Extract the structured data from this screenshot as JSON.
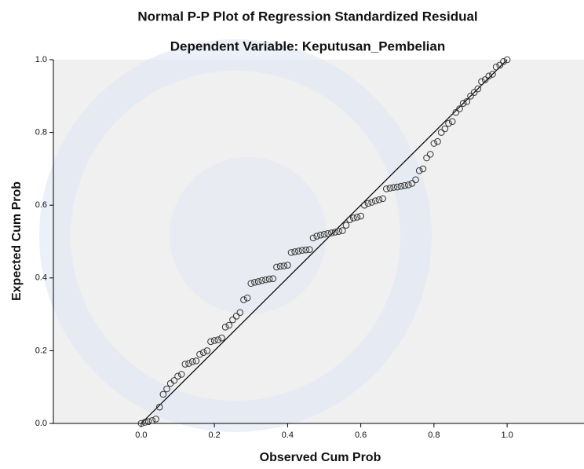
{
  "chart_data": {
    "type": "scatter",
    "title": "Normal P-P Plot of Regression Standardized Residual",
    "subtitle": "Dependent Variable: Keputusan_Pembelian",
    "x_label": "Observed Cum Prob",
    "y_label": "Expected Cum Prob",
    "x": [
      0.0,
      0.01,
      0.02,
      0.03,
      0.04,
      0.05,
      0.06,
      0.07,
      0.08,
      0.09,
      0.1,
      0.11,
      0.12,
      0.13,
      0.14,
      0.15,
      0.16,
      0.17,
      0.18,
      0.19,
      0.2,
      0.21,
      0.22,
      0.23,
      0.24,
      0.25,
      0.26,
      0.27,
      0.28,
      0.29,
      0.3,
      0.31,
      0.32,
      0.33,
      0.34,
      0.35,
      0.36,
      0.37,
      0.38,
      0.39,
      0.4,
      0.41,
      0.42,
      0.43,
      0.44,
      0.45,
      0.46,
      0.47,
      0.48,
      0.49,
      0.5,
      0.51,
      0.52,
      0.53,
      0.54,
      0.55,
      0.56,
      0.57,
      0.58,
      0.59,
      0.6,
      0.61,
      0.62,
      0.63,
      0.64,
      0.65,
      0.66,
      0.67,
      0.68,
      0.69,
      0.7,
      0.71,
      0.72,
      0.73,
      0.74,
      0.75,
      0.76,
      0.77,
      0.78,
      0.79,
      0.8,
      0.81,
      0.82,
      0.83,
      0.84,
      0.85,
      0.86,
      0.87,
      0.88,
      0.89,
      0.9,
      0.91,
      0.92,
      0.93,
      0.94,
      0.95,
      0.96,
      0.97,
      0.98,
      0.99,
      1.0
    ],
    "values": [
      0.0,
      0.003,
      0.005,
      0.008,
      0.012,
      0.045,
      0.08,
      0.095,
      0.11,
      0.118,
      0.13,
      0.135,
      0.163,
      0.165,
      0.17,
      0.172,
      0.19,
      0.195,
      0.2,
      0.225,
      0.228,
      0.23,
      0.235,
      0.265,
      0.27,
      0.285,
      0.295,
      0.305,
      0.34,
      0.345,
      0.385,
      0.388,
      0.39,
      0.393,
      0.395,
      0.397,
      0.398,
      0.43,
      0.432,
      0.433,
      0.435,
      0.47,
      0.472,
      0.474,
      0.476,
      0.477,
      0.478,
      0.51,
      0.515,
      0.518,
      0.52,
      0.522,
      0.524,
      0.526,
      0.528,
      0.53,
      0.545,
      0.56,
      0.565,
      0.567,
      0.57,
      0.6,
      0.605,
      0.608,
      0.612,
      0.615,
      0.618,
      0.645,
      0.647,
      0.649,
      0.65,
      0.652,
      0.654,
      0.656,
      0.66,
      0.67,
      0.695,
      0.7,
      0.73,
      0.74,
      0.77,
      0.775,
      0.8,
      0.81,
      0.825,
      0.83,
      0.855,
      0.865,
      0.88,
      0.885,
      0.9,
      0.91,
      0.92,
      0.94,
      0.945,
      0.955,
      0.96,
      0.98,
      0.985,
      0.995,
      1.0
    ],
    "xlim": [
      -0.24,
      1.21
    ],
    "ylim": [
      0,
      1
    ],
    "xticks": [
      {
        "value": 0,
        "label": "0.0"
      },
      {
        "value": 0.2,
        "label": "0.2"
      },
      {
        "value": 0.4,
        "label": "0.4"
      },
      {
        "value": 0.6,
        "label": "0.6"
      },
      {
        "value": 0.8,
        "label": "0.8"
      },
      {
        "value": 1,
        "label": "1.0"
      }
    ],
    "yticks": [
      {
        "value": 0,
        "label": "0.0"
      },
      {
        "value": 0.2,
        "label": "0.2"
      },
      {
        "value": 0.4,
        "label": "0.4"
      },
      {
        "value": 0.6,
        "label": "0.6"
      },
      {
        "value": 0.8,
        "label": "0.8"
      },
      {
        "value": 1,
        "label": "1.0"
      }
    ],
    "color": "#333333",
    "reference_line": true
  }
}
